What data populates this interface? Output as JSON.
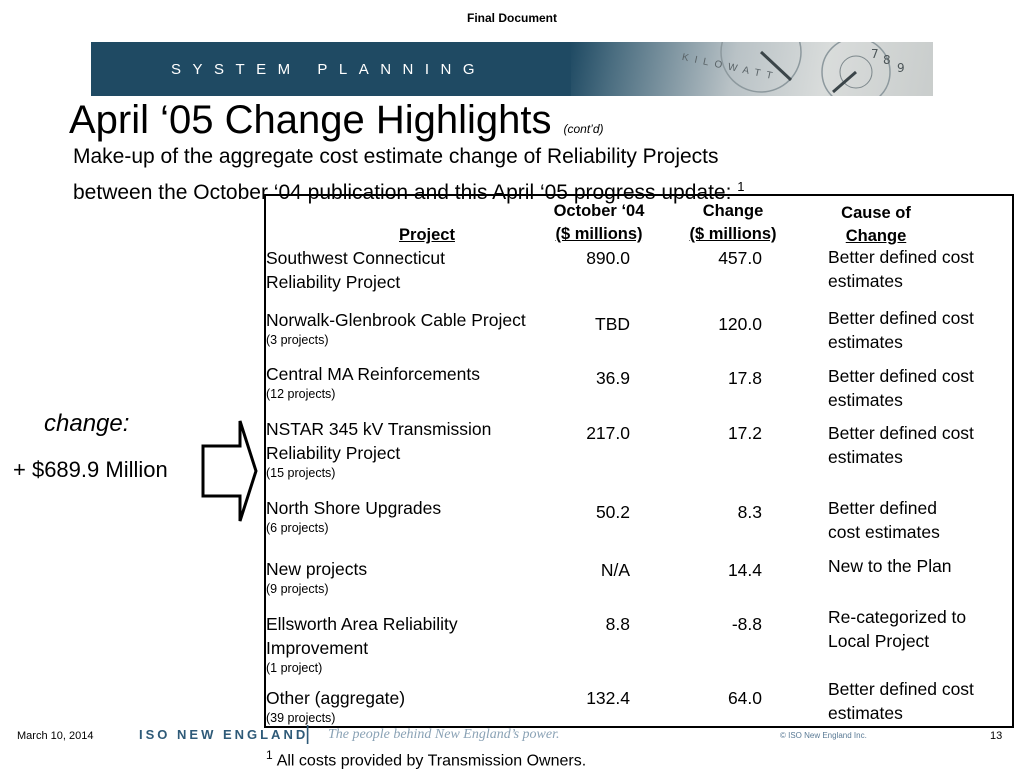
{
  "header": {
    "final_document": "Final Document",
    "banner_text": "SYSTEM PLANNING",
    "banner_art_text": "KILOWATT"
  },
  "title": {
    "main": "April ‘05 Change Highlights",
    "sub": "(cont’d)"
  },
  "subtitle": {
    "line1": "Make-up of the aggregate cost estimate change of Reliability Projects",
    "line2": "between the October ‘04 publication and this April ‘05 progress update:",
    "footnote_marker": "1"
  },
  "table": {
    "headers": {
      "project": "Project",
      "oct_line1": "October ‘04",
      "oct_line2": "($ millions)",
      "change_line1": "Change",
      "change_line2": "($ millions)",
      "cause_line1": "Cause of",
      "cause_line2": "Change"
    },
    "rows": [
      {
        "name": "Southwest Connecticut",
        "name2": "Reliability Project",
        "sub": "",
        "oct": "890.0",
        "change": "457.0",
        "cause": "Better defined cost estimates"
      },
      {
        "name": "Norwalk-Glenbrook Cable Project",
        "name2": "",
        "sub": "(3 projects)",
        "oct": "TBD",
        "change": "120.0",
        "cause": "Better defined cost estimates"
      },
      {
        "name": "Central MA Reinforcements",
        "name2": "",
        "sub": "(12 projects)",
        "oct": "36.9",
        "change": "17.8",
        "cause": "Better defined cost estimates"
      },
      {
        "name": "NSTAR 345 kV Transmission",
        "name2": "Reliability Project",
        "sub": "(15 projects)",
        "oct": "217.0",
        "change": "17.2",
        "cause": "Better defined cost estimates"
      },
      {
        "name": "North Shore Upgrades",
        "name2": "",
        "sub": "(6 projects)",
        "oct": "50.2",
        "change": "8.3",
        "cause": "Better defined cost estimates"
      },
      {
        "name": "New projects",
        "name2": "",
        "sub": "(9 projects)",
        "oct": "N/A",
        "change": "14.4",
        "cause": "New to the Plan"
      },
      {
        "name": "Ellsworth Area Reliability",
        "name2": "Improvement",
        "sub": "(1 project)",
        "oct": "8.8",
        "change": "-8.8",
        "cause": "Re-categorized to Local Project"
      },
      {
        "name": "Other (aggregate)",
        "name2": "",
        "sub": "(39 projects)",
        "oct": "132.4",
        "change": "64.0",
        "cause": "Better defined cost estimates"
      }
    ]
  },
  "change_callout": {
    "label": "change:",
    "value": "+ $689.9 Million"
  },
  "footer": {
    "date": "March 10, 2014",
    "logo": "ISO NEW ENGLAND",
    "separator": "|",
    "tagline": "The people behind New England’s power.",
    "copyright": "© ISO New England Inc.",
    "page": "13"
  },
  "footnote": {
    "marker": "1",
    "text": "All costs provided by Transmission Owners."
  }
}
